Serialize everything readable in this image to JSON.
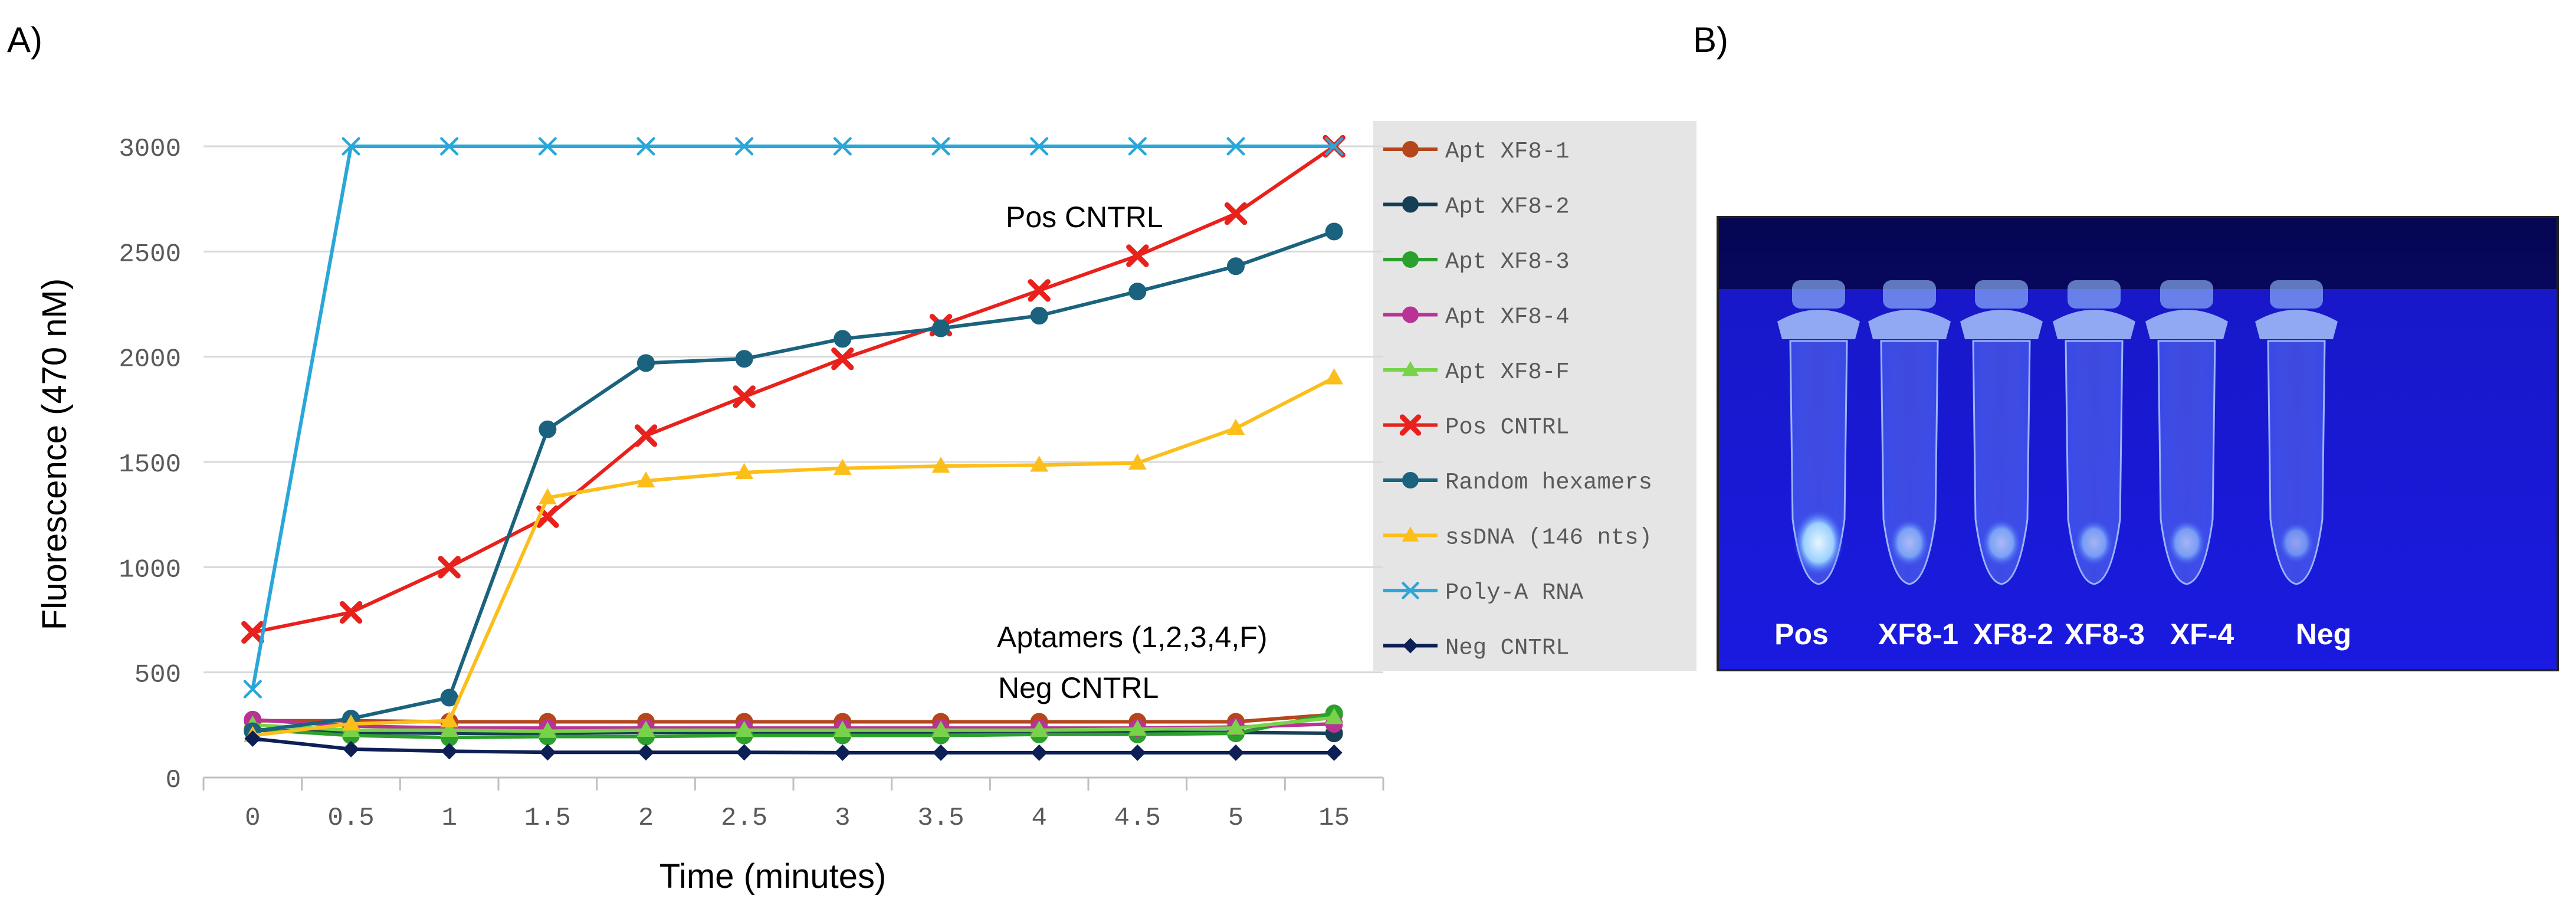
{
  "panels": {
    "a_label": "A)",
    "b_label": "B)"
  },
  "chart_data": {
    "type": "line",
    "title": "",
    "xlabel": "Time (minutes)",
    "ylabel": "Fluorescence (470 nM)",
    "categories": [
      "0",
      "0.5",
      "1",
      "1.5",
      "2",
      "2.5",
      "3",
      "3.5",
      "4",
      "4.5",
      "5",
      "15"
    ],
    "ylim": [
      0,
      3000
    ],
    "yticks": [
      0,
      500,
      1000,
      1500,
      2000,
      2500,
      3000
    ],
    "grid": "horizontal",
    "legend_position": "right",
    "annotations": [
      "Pos CNTRL",
      "Aptamers (1,2,3,4,F)",
      "Neg CNTRL"
    ],
    "series": [
      {
        "name": "Apt XF8-1",
        "color": "#b5461c",
        "marker": "circle",
        "values": [
          270,
          270,
          265,
          265,
          265,
          265,
          265,
          265,
          265,
          265,
          265,
          300
        ]
      },
      {
        "name": "Apt XF8-2",
        "color": "#163f56",
        "marker": "circle",
        "values": [
          225,
          215,
          210,
          210,
          215,
          215,
          215,
          215,
          215,
          215,
          215,
          210
        ]
      },
      {
        "name": "Apt XF8-3",
        "color": "#2ca02c",
        "marker": "circle",
        "values": [
          230,
          200,
          190,
          195,
          195,
          200,
          200,
          200,
          205,
          205,
          210,
          305
        ]
      },
      {
        "name": "Apt XF8-4",
        "color": "#b93295",
        "marker": "circle",
        "values": [
          275,
          245,
          235,
          235,
          235,
          235,
          235,
          235,
          235,
          235,
          240,
          255
        ]
      },
      {
        "name": "Apt XF8-F",
        "color": "#79d34a",
        "marker": "triangle",
        "values": [
          250,
          225,
          225,
          220,
          225,
          225,
          225,
          225,
          225,
          230,
          235,
          285
        ]
      },
      {
        "name": "Pos CNTRL",
        "color": "#e8211c",
        "marker": "x-thick",
        "values": [
          690,
          785,
          1000,
          1240,
          1625,
          1810,
          1990,
          2150,
          2315,
          2480,
          2680,
          3000
        ]
      },
      {
        "name": "Random hexamers",
        "color": "#1b627e",
        "marker": "circle",
        "values": [
          220,
          280,
          380,
          1655,
          1970,
          1990,
          2085,
          2135,
          2195,
          2310,
          2430,
          2595
        ]
      },
      {
        "name": "ssDNA (146 nts)",
        "color": "#fbbe1b",
        "marker": "triangle",
        "values": [
          200,
          255,
          270,
          1330,
          1410,
          1450,
          1470,
          1480,
          1485,
          1495,
          1660,
          1900
        ]
      },
      {
        "name": "Poly-A RNA",
        "color": "#2aa6d8",
        "marker": "x",
        "values": [
          420,
          3000,
          3000,
          3000,
          3000,
          3000,
          3000,
          3000,
          3000,
          3000,
          3000,
          3000
        ]
      },
      {
        "name": "Neg CNTRL",
        "color": "#0d1f55",
        "marker": "diamond",
        "values": [
          185,
          135,
          125,
          120,
          120,
          120,
          118,
          118,
          118,
          118,
          118,
          118
        ]
      }
    ]
  },
  "photo": {
    "colors": {
      "background": "#1717d6",
      "glow": "#a8d0ff"
    },
    "tube_labels": [
      "Pos",
      "XF8-1",
      "XF8-2",
      "XF8-3",
      "XF-4",
      "Neg"
    ]
  }
}
